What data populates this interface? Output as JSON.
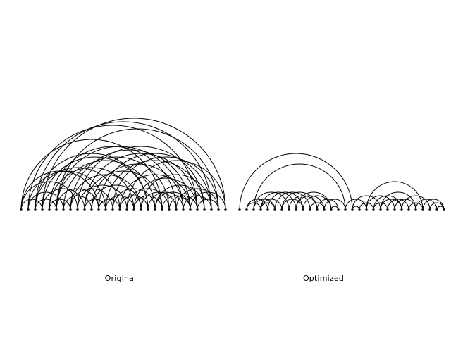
{
  "panels": [
    {
      "caption": "Original",
      "node_count": 30,
      "links": [
        [
          0,
          3
        ],
        [
          0,
          8
        ],
        [
          0,
          20
        ],
        [
          1,
          6
        ],
        [
          1,
          12
        ],
        [
          1,
          25
        ],
        [
          2,
          5
        ],
        [
          2,
          14
        ],
        [
          2,
          27
        ],
        [
          3,
          9
        ],
        [
          3,
          18
        ],
        [
          3,
          29
        ],
        [
          4,
          7
        ],
        [
          4,
          16
        ],
        [
          4,
          22
        ],
        [
          5,
          11
        ],
        [
          5,
          19
        ],
        [
          5,
          28
        ],
        [
          6,
          10
        ],
        [
          6,
          21
        ],
        [
          7,
          13
        ],
        [
          7,
          24
        ],
        [
          8,
          15
        ],
        [
          8,
          26
        ],
        [
          9,
          12
        ],
        [
          9,
          20
        ],
        [
          10,
          17
        ],
        [
          10,
          23
        ],
        [
          11,
          14
        ],
        [
          11,
          27
        ],
        [
          12,
          16
        ],
        [
          12,
          26
        ],
        [
          13,
          19
        ],
        [
          13,
          28
        ],
        [
          14,
          18
        ],
        [
          14,
          24
        ],
        [
          15,
          21
        ],
        [
          15,
          29
        ],
        [
          16,
          20
        ],
        [
          16,
          25
        ],
        [
          17,
          22
        ],
        [
          17,
          27
        ],
        [
          18,
          23
        ],
        [
          19,
          26
        ],
        [
          20,
          24
        ],
        [
          21,
          25
        ],
        [
          22,
          28
        ],
        [
          23,
          27
        ],
        [
          24,
          29
        ],
        [
          0,
          11
        ],
        [
          2,
          18
        ],
        [
          5,
          23
        ],
        [
          7,
          17
        ],
        [
          9,
          25
        ],
        [
          19,
          24
        ],
        [
          25,
          28
        ]
      ]
    },
    {
      "caption": "Optimized",
      "node_count": 30,
      "links": [
        [
          0,
          16
        ],
        [
          2,
          15
        ],
        [
          1,
          3
        ],
        [
          1,
          4
        ],
        [
          2,
          5
        ],
        [
          3,
          6
        ],
        [
          2,
          7
        ],
        [
          3,
          8
        ],
        [
          4,
          9
        ],
        [
          5,
          10
        ],
        [
          6,
          9
        ],
        [
          7,
          11
        ],
        [
          8,
          12
        ],
        [
          9,
          13
        ],
        [
          10,
          12
        ],
        [
          11,
          14
        ],
        [
          12,
          15
        ],
        [
          13,
          14
        ],
        [
          15,
          18
        ],
        [
          16,
          17
        ],
        [
          16,
          20
        ],
        [
          17,
          19
        ],
        [
          18,
          22
        ],
        [
          19,
          21
        ],
        [
          18,
          26
        ],
        [
          20,
          23
        ],
        [
          21,
          24
        ],
        [
          22,
          25
        ],
        [
          23,
          27
        ],
        [
          24,
          26
        ],
        [
          25,
          28
        ],
        [
          26,
          29
        ],
        [
          27,
          29
        ],
        [
          28,
          29
        ],
        [
          20,
          25
        ],
        [
          6,
          11
        ],
        [
          8,
          13
        ],
        [
          3,
          5
        ],
        [
          19,
          23
        ]
      ]
    }
  ]
}
